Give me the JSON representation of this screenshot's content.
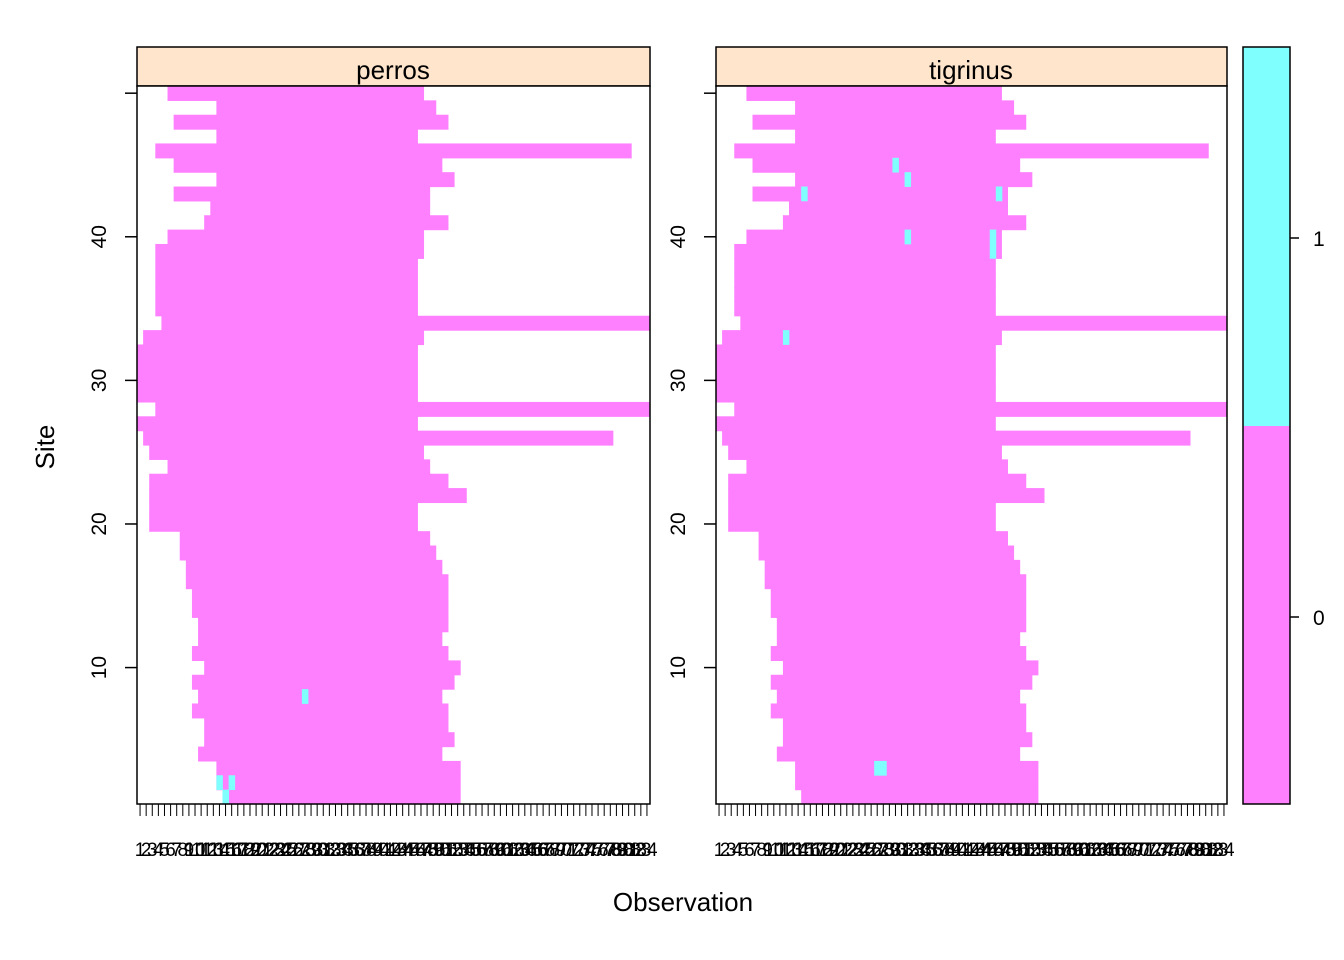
{
  "chart_data": {
    "type": "heatmap",
    "xlabel": "Observation",
    "ylabel": "Site",
    "x_range": [
      1,
      84
    ],
    "y_range": [
      1,
      50
    ],
    "y_ticks": [
      "10",
      "20",
      "30",
      "40"
    ],
    "colorkey": {
      "ticks": [
        "0",
        "1"
      ],
      "colors": {
        "0": "#ff80ff",
        "1": "#80ffff"
      }
    },
    "panels": [
      {
        "title": "perros",
        "detections": [
          [
            14,
            2
          ],
          [
            16,
            2
          ],
          [
            15,
            1
          ],
          [
            28,
            8
          ]
        ],
        "rows": [
          {
            "site": 1,
            "start": 15,
            "end": 53
          },
          {
            "site": 2,
            "start": 14,
            "end": 53
          },
          {
            "site": 3,
            "start": 14,
            "end": 53
          },
          {
            "site": 4,
            "start": 11,
            "end": 50
          },
          {
            "site": 5,
            "start": 12,
            "end": 52
          },
          {
            "site": 6,
            "start": 12,
            "end": 51
          },
          {
            "site": 7,
            "start": 10,
            "end": 51
          },
          {
            "site": 8,
            "start": 11,
            "end": 50
          },
          {
            "site": 9,
            "start": 10,
            "end": 52
          },
          {
            "site": 10,
            "start": 12,
            "end": 53
          },
          {
            "site": 11,
            "start": 10,
            "end": 51
          },
          {
            "site": 12,
            "start": 11,
            "end": 50
          },
          {
            "site": 13,
            "start": 11,
            "end": 51
          },
          {
            "site": 14,
            "start": 10,
            "end": 51
          },
          {
            "site": 15,
            "start": 10,
            "end": 51
          },
          {
            "site": 16,
            "start": 9,
            "end": 51
          },
          {
            "site": 17,
            "start": 9,
            "end": 50
          },
          {
            "site": 18,
            "start": 8,
            "end": 49
          },
          {
            "site": 19,
            "start": 8,
            "end": 48
          },
          {
            "site": 20,
            "start": 3,
            "end": 46
          },
          {
            "site": 21,
            "start": 3,
            "end": 46
          },
          {
            "site": 22,
            "start": 3,
            "end": 54
          },
          {
            "site": 23,
            "start": 3,
            "end": 51
          },
          {
            "site": 24,
            "start": 6,
            "end": 48
          },
          {
            "site": 25,
            "start": 3,
            "end": 47
          },
          {
            "site": 26,
            "start": 2,
            "end": 78
          },
          {
            "site": 27,
            "start": 1,
            "end": 46
          },
          {
            "site": 28,
            "start": 4,
            "end": 84
          },
          {
            "site": 29,
            "start": 1,
            "end": 46
          },
          {
            "site": 30,
            "start": 1,
            "end": 46
          },
          {
            "site": 31,
            "start": 1,
            "end": 46
          },
          {
            "site": 32,
            "start": 1,
            "end": 46
          },
          {
            "site": 33,
            "start": 2,
            "end": 47
          },
          {
            "site": 34,
            "start": 5,
            "end": 84
          },
          {
            "site": 35,
            "start": 4,
            "end": 46
          },
          {
            "site": 36,
            "start": 4,
            "end": 46
          },
          {
            "site": 37,
            "start": 4,
            "end": 46
          },
          {
            "site": 38,
            "start": 4,
            "end": 46
          },
          {
            "site": 39,
            "start": 4,
            "end": 47
          },
          {
            "site": 40,
            "start": 6,
            "end": 47
          },
          {
            "site": 41,
            "start": 12,
            "end": 51
          },
          {
            "site": 42,
            "start": 13,
            "end": 48
          },
          {
            "site": 43,
            "start": 7,
            "end": 48
          },
          {
            "site": 44,
            "start": 14,
            "end": 52
          },
          {
            "site": 45,
            "start": 7,
            "end": 50
          },
          {
            "site": 46,
            "start": 4,
            "end": 81
          },
          {
            "site": 47,
            "start": 14,
            "end": 46
          },
          {
            "site": 48,
            "start": 7,
            "end": 51
          },
          {
            "site": 49,
            "start": 14,
            "end": 49
          },
          {
            "site": 50,
            "start": 6,
            "end": 47
          }
        ]
      },
      {
        "title": "tigrinus",
        "detections": [
          [
            27,
            3
          ],
          [
            28,
            3
          ],
          [
            30,
            45
          ],
          [
            32,
            44
          ],
          [
            15,
            43
          ],
          [
            47,
            43
          ],
          [
            32,
            40
          ],
          [
            46,
            40
          ],
          [
            46,
            39
          ],
          [
            12,
            33
          ]
        ],
        "rows": [
          {
            "site": 1,
            "start": 15,
            "end": 53
          },
          {
            "site": 2,
            "start": 14,
            "end": 53
          },
          {
            "site": 3,
            "start": 14,
            "end": 53
          },
          {
            "site": 4,
            "start": 11,
            "end": 50
          },
          {
            "site": 5,
            "start": 12,
            "end": 52
          },
          {
            "site": 6,
            "start": 12,
            "end": 51
          },
          {
            "site": 7,
            "start": 10,
            "end": 51
          },
          {
            "site": 8,
            "start": 11,
            "end": 50
          },
          {
            "site": 9,
            "start": 10,
            "end": 52
          },
          {
            "site": 10,
            "start": 12,
            "end": 53
          },
          {
            "site": 11,
            "start": 10,
            "end": 51
          },
          {
            "site": 12,
            "start": 11,
            "end": 50
          },
          {
            "site": 13,
            "start": 11,
            "end": 51
          },
          {
            "site": 14,
            "start": 10,
            "end": 51
          },
          {
            "site": 15,
            "start": 10,
            "end": 51
          },
          {
            "site": 16,
            "start": 9,
            "end": 51
          },
          {
            "site": 17,
            "start": 9,
            "end": 50
          },
          {
            "site": 18,
            "start": 8,
            "end": 49
          },
          {
            "site": 19,
            "start": 8,
            "end": 48
          },
          {
            "site": 20,
            "start": 3,
            "end": 46
          },
          {
            "site": 21,
            "start": 3,
            "end": 46
          },
          {
            "site": 22,
            "start": 3,
            "end": 54
          },
          {
            "site": 23,
            "start": 3,
            "end": 51
          },
          {
            "site": 24,
            "start": 6,
            "end": 48
          },
          {
            "site": 25,
            "start": 3,
            "end": 47
          },
          {
            "site": 26,
            "start": 2,
            "end": 78
          },
          {
            "site": 27,
            "start": 1,
            "end": 46
          },
          {
            "site": 28,
            "start": 4,
            "end": 84
          },
          {
            "site": 29,
            "start": 1,
            "end": 46
          },
          {
            "site": 30,
            "start": 1,
            "end": 46
          },
          {
            "site": 31,
            "start": 1,
            "end": 46
          },
          {
            "site": 32,
            "start": 1,
            "end": 46
          },
          {
            "site": 33,
            "start": 2,
            "end": 47
          },
          {
            "site": 34,
            "start": 5,
            "end": 84
          },
          {
            "site": 35,
            "start": 4,
            "end": 46
          },
          {
            "site": 36,
            "start": 4,
            "end": 46
          },
          {
            "site": 37,
            "start": 4,
            "end": 46
          },
          {
            "site": 38,
            "start": 4,
            "end": 46
          },
          {
            "site": 39,
            "start": 4,
            "end": 47
          },
          {
            "site": 40,
            "start": 6,
            "end": 47
          },
          {
            "site": 41,
            "start": 12,
            "end": 51
          },
          {
            "site": 42,
            "start": 13,
            "end": 48
          },
          {
            "site": 43,
            "start": 7,
            "end": 48
          },
          {
            "site": 44,
            "start": 14,
            "end": 52
          },
          {
            "site": 45,
            "start": 7,
            "end": 50
          },
          {
            "site": 46,
            "start": 4,
            "end": 81
          },
          {
            "site": 47,
            "start": 14,
            "end": 46
          },
          {
            "site": 48,
            "start": 7,
            "end": 51
          },
          {
            "site": 49,
            "start": 14,
            "end": 49
          },
          {
            "site": 50,
            "start": 6,
            "end": 47
          }
        ]
      }
    ]
  }
}
